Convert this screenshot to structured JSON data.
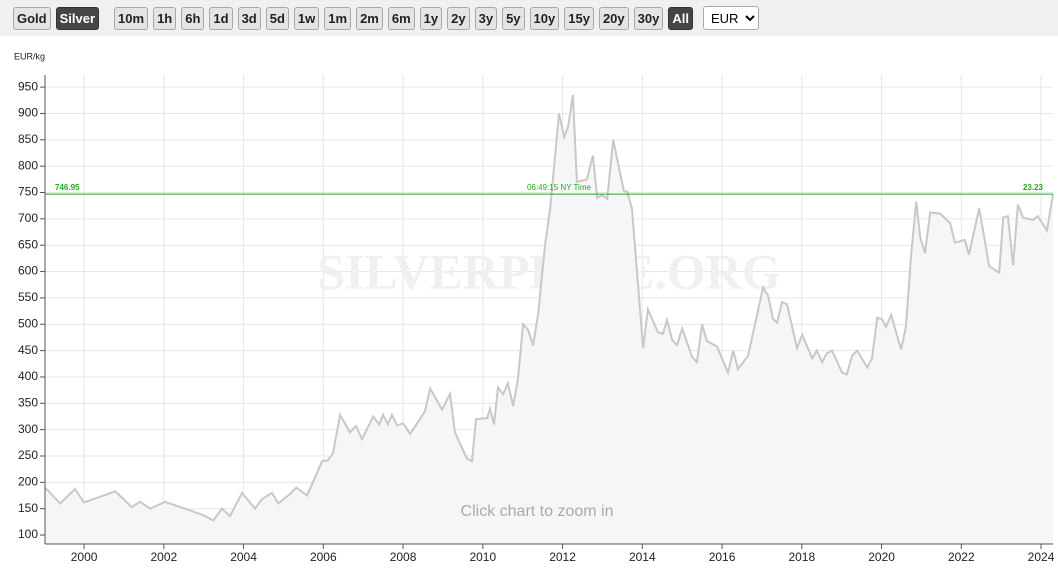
{
  "toolbar": {
    "metals": [
      "Gold",
      "Silver"
    ],
    "selected_metal": "Silver",
    "ranges": [
      "10m",
      "1h",
      "6h",
      "1d",
      "3d",
      "5d",
      "1w",
      "1m",
      "2m",
      "6m",
      "1y",
      "2y",
      "3y",
      "5y",
      "10y",
      "15y",
      "20y",
      "30y",
      "All"
    ],
    "selected_range": "All",
    "currency": "EUR"
  },
  "chart_data": {
    "type": "line",
    "y_label": "EUR/kg",
    "watermark": "SILVERPRICE.ORG",
    "hint": "Click chart to zoom in",
    "line_color": "#c8c8c8",
    "fill_color": "#f6f6f6",
    "grid": true,
    "current_price": 746.95,
    "current_time": "06:49:15 NY Time",
    "current_oz_price": 23.23,
    "current_color": "#22aa22",
    "xlim": [
      1999.02,
      2024.3
    ],
    "ylim": [
      83,
      973
    ],
    "xticks": [
      2000,
      2002,
      2004,
      2006,
      2008,
      2010,
      2012,
      2014,
      2016,
      2018,
      2020,
      2022,
      2024
    ],
    "yticks": [
      100,
      150,
      200,
      250,
      300,
      350,
      400,
      450,
      500,
      550,
      600,
      650,
      700,
      750,
      800,
      850,
      900,
      950
    ],
    "x": [
      1999.02,
      1999.4,
      1999.77,
      2000.0,
      2000.78,
      2001.2,
      2001.4,
      2001.66,
      2002.03,
      2002.53,
      2002.98,
      2003.24,
      2003.46,
      2003.66,
      2003.96,
      2004.29,
      2004.46,
      2004.71,
      2004.87,
      2005.17,
      2005.32,
      2005.59,
      2005.74,
      2005.97,
      2006.12,
      2006.24,
      2006.42,
      2006.67,
      2006.82,
      2006.97,
      2007.25,
      2007.4,
      2007.5,
      2007.62,
      2007.72,
      2007.85,
      2008.0,
      2008.18,
      2008.55,
      2008.68,
      2008.98,
      2009.18,
      2009.3,
      2009.6,
      2009.73,
      2009.83,
      2010.11,
      2010.18,
      2010.28,
      2010.38,
      2010.51,
      2010.63,
      2010.76,
      2010.88,
      2011.01,
      2011.13,
      2011.26,
      2011.39,
      2011.56,
      2011.69,
      2011.91,
      2012.04,
      2012.14,
      2012.26,
      2012.36,
      2012.61,
      2012.76,
      2012.87,
      2012.99,
      2013.12,
      2013.27,
      2013.42,
      2013.54,
      2013.62,
      2013.74,
      2014.02,
      2014.14,
      2014.39,
      2014.52,
      2014.62,
      2014.75,
      2014.87,
      2015.0,
      2015.25,
      2015.37,
      2015.5,
      2015.62,
      2015.87,
      2016.15,
      2016.28,
      2016.4,
      2016.65,
      2016.9,
      2017.03,
      2017.15,
      2017.28,
      2017.38,
      2017.5,
      2017.63,
      2017.88,
      2018.01,
      2018.26,
      2018.38,
      2018.51,
      2018.63,
      2018.76,
      2019.01,
      2019.13,
      2019.26,
      2019.39,
      2019.64,
      2019.76,
      2019.89,
      2020.01,
      2020.11,
      2020.24,
      2020.49,
      2020.61,
      2020.74,
      2020.87,
      2020.97,
      2021.09,
      2021.22,
      2021.47,
      2021.72,
      2021.84,
      2022.09,
      2022.19,
      2022.45,
      2022.7,
      2022.95,
      2023.05,
      2023.17,
      2023.3,
      2023.42,
      2023.55,
      2023.8,
      2023.92,
      2024.15,
      2024.3
    ],
    "values": [
      190,
      160,
      187,
      162,
      183,
      153,
      163,
      150,
      163,
      150,
      138,
      128,
      150,
      136,
      180,
      150,
      168,
      180,
      160,
      178,
      190,
      175,
      200,
      240,
      242,
      255,
      328,
      295,
      307,
      282,
      325,
      310,
      328,
      310,
      328,
      308,
      312,
      292,
      335,
      378,
      338,
      368,
      295,
      245,
      240,
      320,
      322,
      340,
      310,
      380,
      367,
      388,
      345,
      395,
      500,
      490,
      460,
      520,
      650,
      720,
      900,
      855,
      875,
      935,
      770,
      775,
      820,
      740,
      745,
      738,
      850,
      795,
      752,
      752,
      720,
      455,
      528,
      485,
      482,
      508,
      470,
      460,
      492,
      438,
      428,
      500,
      468,
      458,
      408,
      450,
      415,
      440,
      525,
      570,
      555,
      510,
      503,
      542,
      538,
      455,
      480,
      435,
      450,
      428,
      445,
      450,
      408,
      405,
      440,
      450,
      418,
      435,
      512,
      510,
      495,
      518,
      452,
      495,
      630,
      733,
      665,
      635,
      712,
      710,
      692,
      655,
      660,
      632,
      720,
      610,
      598,
      703,
      705,
      612,
      727,
      702,
      698,
      705,
      678,
      746.95
    ]
  }
}
